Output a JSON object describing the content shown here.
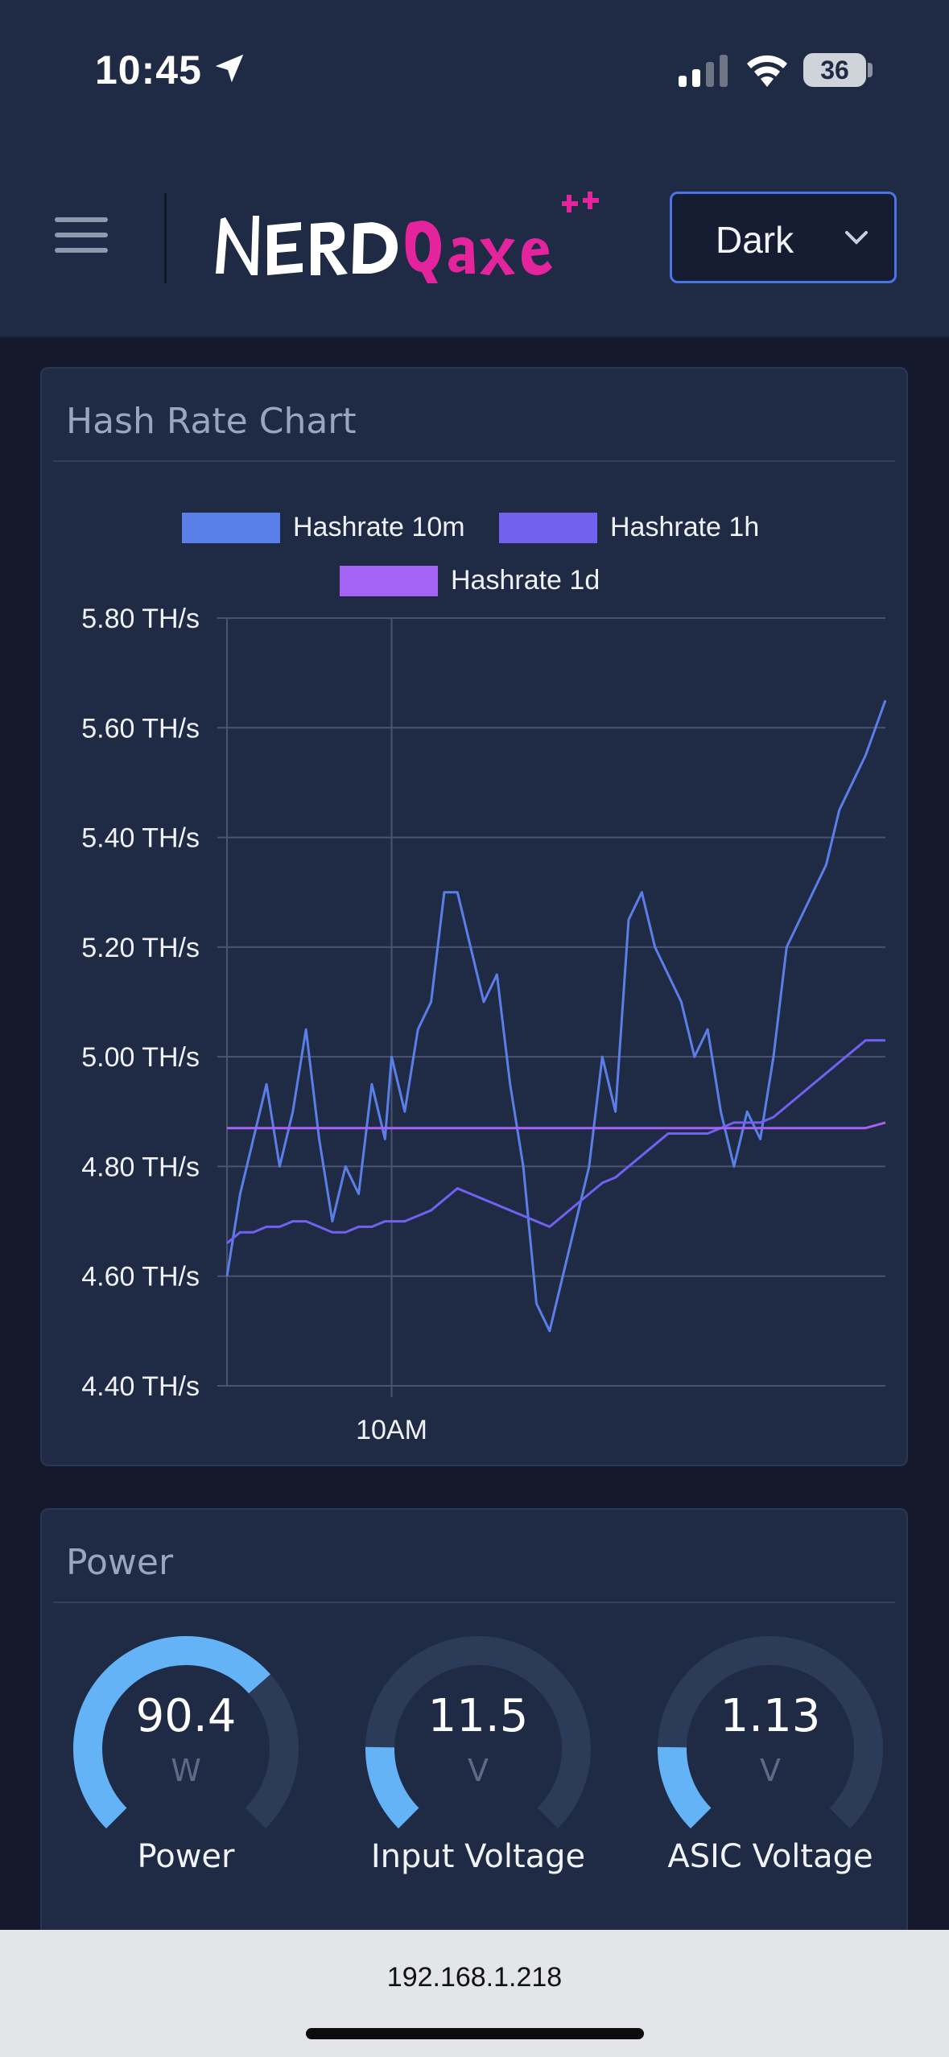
{
  "status_bar": {
    "time": "10:45",
    "battery": "36",
    "icons": [
      "location-arrow-icon",
      "cellular-signal-icon",
      "wifi-icon",
      "battery-icon"
    ]
  },
  "header": {
    "menu_icon": "hamburger-menu-icon",
    "logo_text": "NERDQaxe++",
    "theme_select": {
      "value": "Dark",
      "icon": "chevron-down-icon"
    }
  },
  "hashrate_card": {
    "title": "Hash Rate Chart",
    "chart_data": {
      "type": "line",
      "title": "",
      "xlabel": "",
      "ylabel": "",
      "x_tick_labels": [
        "10AM"
      ],
      "y_tick_labels": [
        "5.80 TH/s",
        "5.60 TH/s",
        "5.40 TH/s",
        "5.20 TH/s",
        "5.00 TH/s",
        "4.80 TH/s",
        "4.60 TH/s",
        "4.40 TH/s"
      ],
      "ylim": [
        4.4,
        5.8
      ],
      "grid": true,
      "legend_position": "top",
      "x": [
        0,
        0.02,
        0.04,
        0.06,
        0.08,
        0.1,
        0.12,
        0.14,
        0.16,
        0.18,
        0.2,
        0.22,
        0.24,
        0.25,
        0.27,
        0.29,
        0.31,
        0.33,
        0.35,
        0.37,
        0.39,
        0.41,
        0.43,
        0.45,
        0.47,
        0.49,
        0.51,
        0.53,
        0.55,
        0.57,
        0.59,
        0.61,
        0.63,
        0.65,
        0.67,
        0.69,
        0.71,
        0.73,
        0.75,
        0.77,
        0.79,
        0.81,
        0.83,
        0.85,
        0.87,
        0.89,
        0.91,
        0.93,
        0.95,
        0.97,
        1.0
      ],
      "series": [
        {
          "name": "Hashrate 10m",
          "color": "#5b7fe8",
          "values": [
            4.6,
            4.75,
            4.85,
            4.95,
            4.8,
            4.9,
            5.05,
            4.85,
            4.7,
            4.8,
            4.75,
            4.95,
            4.85,
            5.0,
            4.9,
            5.05,
            5.1,
            5.3,
            5.3,
            5.2,
            5.1,
            5.15,
            4.95,
            4.8,
            4.55,
            4.5,
            4.6,
            4.7,
            4.8,
            5.0,
            4.9,
            5.25,
            5.3,
            5.2,
            5.15,
            5.1,
            5.0,
            5.05,
            4.9,
            4.8,
            4.9,
            4.85,
            5.0,
            5.2,
            5.25,
            5.3,
            5.35,
            5.45,
            5.5,
            5.55,
            5.65
          ]
        },
        {
          "name": "Hashrate 1h",
          "color": "#7062ef",
          "values": [
            4.66,
            4.68,
            4.68,
            4.69,
            4.69,
            4.7,
            4.7,
            4.69,
            4.68,
            4.68,
            4.69,
            4.69,
            4.7,
            4.7,
            4.7,
            4.71,
            4.72,
            4.74,
            4.76,
            4.75,
            4.74,
            4.73,
            4.72,
            4.71,
            4.7,
            4.69,
            4.71,
            4.73,
            4.75,
            4.77,
            4.78,
            4.8,
            4.82,
            4.84,
            4.86,
            4.86,
            4.86,
            4.86,
            4.87,
            4.88,
            4.88,
            4.88,
            4.89,
            4.91,
            4.93,
            4.95,
            4.97,
            4.99,
            5.01,
            5.03,
            5.03
          ]
        },
        {
          "name": "Hashrate 1d",
          "color": "#a463f2",
          "values": [
            4.87,
            4.87,
            4.87,
            4.87,
            4.87,
            4.87,
            4.87,
            4.87,
            4.87,
            4.87,
            4.87,
            4.87,
            4.87,
            4.87,
            4.87,
            4.87,
            4.87,
            4.87,
            4.87,
            4.87,
            4.87,
            4.87,
            4.87,
            4.87,
            4.87,
            4.87,
            4.87,
            4.87,
            4.87,
            4.87,
            4.87,
            4.87,
            4.87,
            4.87,
            4.87,
            4.87,
            4.87,
            4.87,
            4.87,
            4.87,
            4.87,
            4.87,
            4.87,
            4.87,
            4.87,
            4.87,
            4.87,
            4.87,
            4.87,
            4.87,
            4.88
          ]
        }
      ]
    }
  },
  "power_card": {
    "title": "Power",
    "gauges": [
      {
        "label": "Power",
        "value": "90.4",
        "unit": "W",
        "fill": 0.68
      },
      {
        "label": "Input Voltage",
        "value": "11.5",
        "unit": "V",
        "fill": 0.17
      },
      {
        "label": "ASIC Voltage",
        "value": "1.13",
        "unit": "V",
        "fill": 0.17
      }
    ],
    "colors": {
      "fill": "#63b3f6",
      "track": "#2b3b58"
    }
  },
  "browser": {
    "url": "192.168.1.218"
  }
}
